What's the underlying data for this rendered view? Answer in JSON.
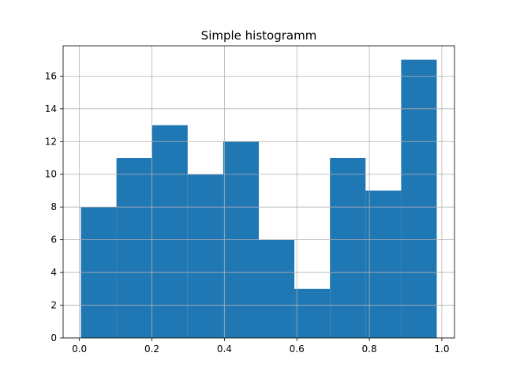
{
  "chart_data": {
    "type": "bar",
    "title": "Simple histogramm",
    "xlabel": "",
    "ylabel": "",
    "bin_edges": [
      0.004,
      0.1022,
      0.2004,
      0.2986,
      0.3968,
      0.495,
      0.5932,
      0.6914,
      0.7896,
      0.8878,
      0.986
    ],
    "values": [
      8,
      11,
      13,
      10,
      12,
      6,
      3,
      11,
      9,
      17
    ],
    "xlim": [
      -0.045,
      1.035
    ],
    "ylim": [
      0,
      17.85
    ],
    "xticks": [
      0.0,
      0.2,
      0.4,
      0.6,
      0.8,
      1.0
    ],
    "xtick_labels": [
      "0.0",
      "0.2",
      "0.4",
      "0.6",
      "0.8",
      "1.0"
    ],
    "yticks": [
      0,
      2,
      4,
      6,
      8,
      10,
      12,
      14,
      16
    ],
    "ytick_labels": [
      "0",
      "2",
      "4",
      "6",
      "8",
      "10",
      "12",
      "14",
      "16"
    ],
    "grid": true,
    "bar_color": "#1f77b4"
  }
}
